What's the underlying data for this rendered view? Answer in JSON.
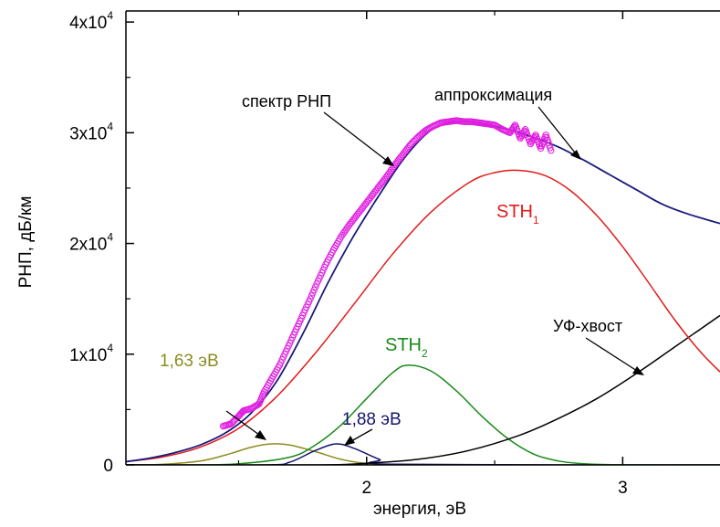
{
  "chart_data": {
    "type": "line",
    "xlabel": "энергия, эВ",
    "ylabel": "РНП, дБ/км",
    "xlim": [
      1.06,
      3.38
    ],
    "ylim": [
      0,
      41000
    ],
    "x_ticks": [
      {
        "value": 2,
        "label": "2"
      },
      {
        "value": 3,
        "label": "3"
      }
    ],
    "y_ticks": [
      {
        "value": 0,
        "mant": "0",
        "exp": ""
      },
      {
        "value": 10000,
        "mant": "1x10",
        "exp": "4"
      },
      {
        "value": 20000,
        "mant": "2x10",
        "exp": "4"
      },
      {
        "value": 30000,
        "mant": "3x10",
        "exp": "4"
      },
      {
        "value": 40000,
        "mant": "4x10",
        "exp": "4"
      }
    ],
    "series": [
      {
        "key": "fit",
        "color": "#1a1a7a",
        "x": [
          1.06,
          1.15,
          1.25,
          1.35,
          1.45,
          1.55,
          1.65,
          1.75,
          1.85,
          1.95,
          2.05,
          2.15,
          2.25,
          2.35,
          2.45,
          2.55,
          2.65,
          2.75,
          2.85,
          2.95,
          3.05,
          3.15,
          3.25,
          3.38
        ],
        "y": [
          300,
          600,
          1100,
          1800,
          2900,
          4700,
          7600,
          11800,
          16500,
          20700,
          24400,
          27800,
          30200,
          31000,
          30800,
          30300,
          29600,
          28700,
          27500,
          26200,
          24900,
          23600,
          22700,
          21800
        ]
      },
      {
        "key": "sth1",
        "color": "#e31a1a",
        "x": [
          1.06,
          1.2,
          1.35,
          1.5,
          1.65,
          1.8,
          1.95,
          2.1,
          2.25,
          2.4,
          2.5,
          2.6,
          2.7,
          2.8,
          2.9,
          3.0,
          3.1,
          3.2,
          3.3,
          3.38
        ],
        "y": [
          300,
          700,
          1600,
          3300,
          6200,
          10100,
          14500,
          19000,
          22800,
          25500,
          26400,
          26600,
          26100,
          24700,
          22500,
          19700,
          16500,
          13200,
          10300,
          8400
        ]
      },
      {
        "key": "sth2",
        "color": "#1a8a1a",
        "x": [
          1.06,
          1.3,
          1.5,
          1.7,
          1.8,
          1.9,
          2.0,
          2.1,
          2.16,
          2.25,
          2.35,
          2.45,
          2.55,
          2.65,
          2.75,
          2.85,
          3.0,
          3.38
        ],
        "y": [
          0,
          0,
          100,
          700,
          1800,
          3600,
          6000,
          8300,
          9000,
          8500,
          6700,
          4400,
          2400,
          1000,
          350,
          100,
          0,
          0
        ]
      },
      {
        "key": "g163",
        "color": "#8c8c1f",
        "x": [
          1.06,
          1.2,
          1.35,
          1.45,
          1.55,
          1.63,
          1.7,
          1.8,
          1.9,
          2.0,
          2.1,
          3.38
        ],
        "y": [
          0,
          50,
          350,
          900,
          1600,
          1900,
          1800,
          1200,
          500,
          120,
          0,
          0
        ]
      },
      {
        "key": "g188",
        "color": "#14146e",
        "x": [
          1.06,
          1.6,
          1.7,
          1.8,
          1.88,
          1.95,
          2.05,
          2.12,
          3.38
        ],
        "y": [
          0,
          0,
          250,
          1300,
          1900,
          1500,
          500,
          60,
          0
        ]
      },
      {
        "key": "uv",
        "color": "#000000",
        "x": [
          1.06,
          1.8,
          2.0,
          2.2,
          2.4,
          2.6,
          2.75,
          2.9,
          3.05,
          3.2,
          3.38
        ],
        "y": [
          0,
          0,
          150,
          500,
          1300,
          2700,
          4200,
          6000,
          8200,
          10600,
          13500
        ]
      }
    ],
    "scatter": {
      "color": "#e020e0",
      "x": [
        1.44,
        1.47,
        1.5,
        1.52,
        1.55,
        1.58,
        1.6,
        1.63,
        1.66,
        1.69,
        1.72,
        1.75,
        1.78,
        1.81,
        1.84,
        1.87,
        1.9,
        1.93,
        1.96,
        1.99,
        2.02,
        2.05,
        2.08,
        2.11,
        2.14,
        2.17,
        2.2,
        2.23,
        2.26,
        2.29,
        2.32,
        2.35,
        2.38,
        2.41,
        2.44,
        2.47,
        2.5,
        2.53,
        2.56,
        2.58,
        2.6,
        2.62,
        2.64,
        2.66,
        2.68,
        2.7,
        2.72
      ],
      "y": [
        3500,
        3700,
        4400,
        4900,
        5100,
        5500,
        6600,
        7800,
        9000,
        10500,
        12000,
        13500,
        15000,
        16600,
        18100,
        19400,
        20600,
        21600,
        22500,
        23400,
        24300,
        25200,
        26100,
        27100,
        28000,
        28900,
        29600,
        30200,
        30600,
        30900,
        31000,
        31100,
        31000,
        31000,
        30900,
        30800,
        30700,
        30300,
        30000,
        30700,
        29500,
        30300,
        29000,
        29800,
        28600,
        29800,
        28400
      ]
    },
    "labels": {
      "fit_spec": "спектр РНП",
      "fit_approx": "аппроксимация",
      "sth1_base": "STH",
      "sth1_sub": "1",
      "sth2_base": "STH",
      "sth2_sub": "2",
      "g163": "1,63 эВ",
      "g188": "1,88 эВ",
      "uv": "УФ-хвост"
    }
  }
}
